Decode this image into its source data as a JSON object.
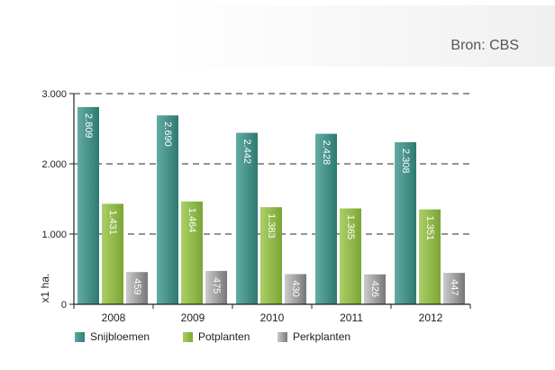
{
  "header": {
    "source": "Bron: CBS"
  },
  "colors": {
    "snijbloemen": "#3d8c82",
    "potplanten": "#8db84a",
    "perkplanten": "#9a9a9a"
  },
  "chart_data": {
    "type": "bar",
    "categories": [
      "2008",
      "2009",
      "2010",
      "2011",
      "2012"
    ],
    "series": [
      {
        "name": "Snijbloemen",
        "values": [
          2809,
          2690,
          2442,
          2428,
          2308
        ],
        "labels": [
          "2.809",
          "2.690",
          "2.442",
          "2.428",
          "2.308"
        ]
      },
      {
        "name": "Potplanten",
        "values": [
          1431,
          1464,
          1383,
          1365,
          1351
        ],
        "labels": [
          "1.431",
          "1.464",
          "1.383",
          "1.365",
          "1.351"
        ]
      },
      {
        "name": "Perkplanten",
        "values": [
          459,
          475,
          430,
          426,
          447
        ],
        "labels": [
          "459",
          "475",
          "430",
          "426",
          "447"
        ]
      }
    ],
    "ylabel": "x1 ha.",
    "yticks": [
      "0",
      "1.000",
      "2.000",
      "3.000"
    ],
    "ytick_values": [
      0,
      1000,
      2000,
      3000
    ],
    "ylim": [
      0,
      3000
    ],
    "grid": true,
    "legend": "bottom"
  }
}
